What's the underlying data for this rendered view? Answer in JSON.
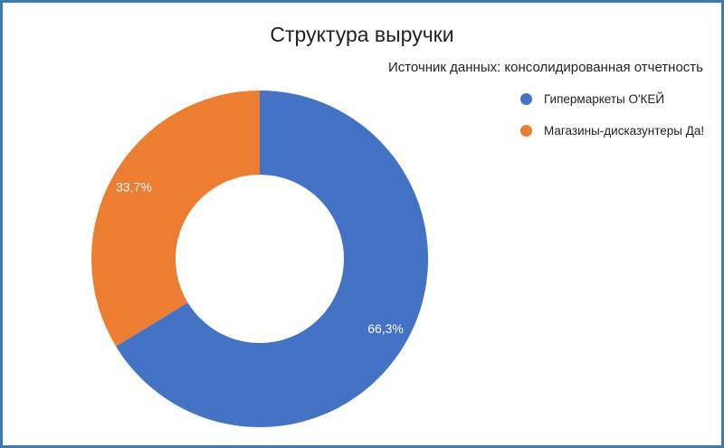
{
  "chart_data": {
    "type": "pie",
    "title": "Структура выручки",
    "subtitle": "Источник данных: консолидированная отчетность",
    "categories": [
      "Гипермаркеты О'КЕЙ",
      "Магазины-дисказунтеры Да!"
    ],
    "values": [
      66.3,
      33.7
    ],
    "labels": [
      "66,3%",
      "33,7%"
    ],
    "colors": [
      "#4472c4",
      "#ed7d31"
    ],
    "legend_position": "top-right",
    "donut": true
  }
}
